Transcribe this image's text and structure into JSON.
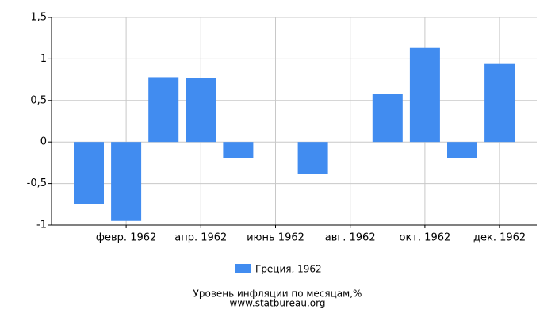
{
  "chart_data": {
    "type": "bar",
    "title": "Уровень инфляции по месяцам,%",
    "source": "www.statbureau.org",
    "categories": [
      null,
      "февр. 1962",
      null,
      "апр. 1962",
      null,
      "июнь 1962",
      null,
      "авг. 1962",
      null,
      "окт. 1962",
      null,
      "дек. 1962"
    ],
    "series": [
      {
        "name": "Греция, 1962",
        "color": "#418cf0",
        "values": [
          -0.75,
          -0.95,
          0.78,
          0.77,
          -0.19,
          0,
          -0.38,
          0,
          0.58,
          1.14,
          -0.19,
          0.94
        ]
      }
    ],
    "ylim": [
      -1,
      1.5
    ],
    "yticks": [
      -1,
      {
        "value": -0.5,
        "label": "-0,5"
      },
      0,
      {
        "value": 0.5,
        "label": "0,5"
      },
      1,
      {
        "value": 1.5,
        "label": "1,5"
      }
    ],
    "grid": true,
    "legend": "bottom"
  }
}
